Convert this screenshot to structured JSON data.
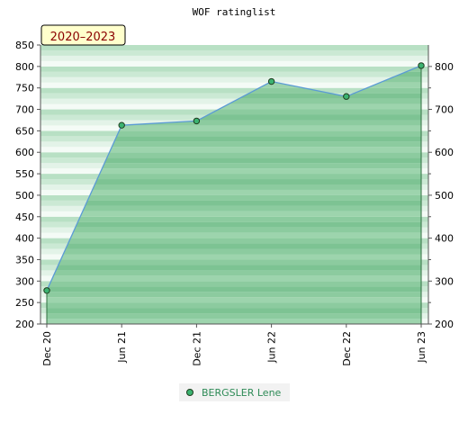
{
  "chart_data": {
    "type": "area",
    "title": "WOF ratinglist",
    "period_label": "2020–2023",
    "xlabel": "",
    "ylabel": "",
    "x": [
      "Dec 20",
      "Jun 21",
      "Dec 21",
      "Jun 22",
      "Dec 22",
      "Jun 23"
    ],
    "series": [
      {
        "name": "BERGSLER Lene",
        "values": [
          278,
          663,
          673,
          765,
          730,
          802
        ]
      }
    ],
    "ylim_left": [
      200,
      850
    ],
    "yticks_left": [
      200,
      250,
      300,
      350,
      400,
      450,
      500,
      550,
      600,
      650,
      700,
      750,
      800,
      850
    ],
    "ylim_right": [
      200,
      850
    ],
    "yticks_right": [
      200,
      300,
      400,
      500,
      600,
      700,
      800
    ],
    "grid": false,
    "legend_position": "bottom",
    "colors": {
      "line": "#5b9bd5",
      "marker": "#3cb371",
      "area": "#66bb7f",
      "legend_text": "#2e8b57",
      "badge_bg": "#ffffcc",
      "badge_text": "#8b0000"
    }
  }
}
